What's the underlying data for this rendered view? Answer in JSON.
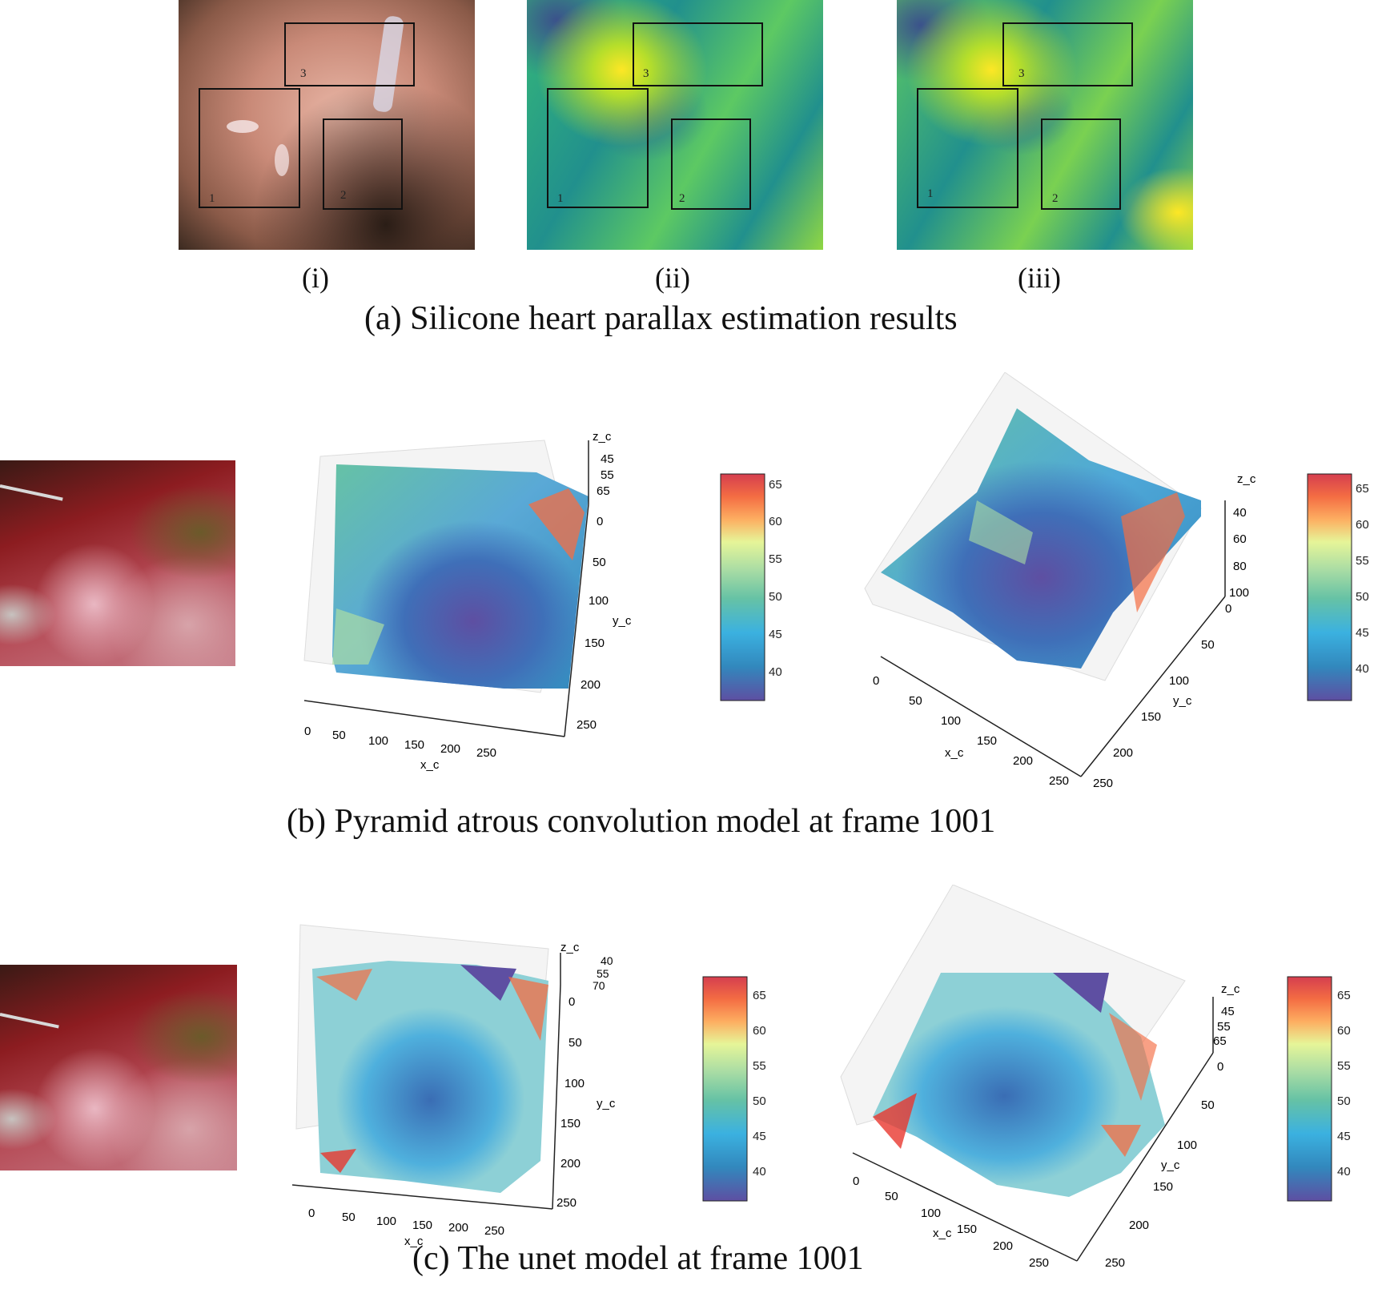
{
  "panel_a": {
    "subpanels": [
      {
        "label": "(i)",
        "box_labels": [
          "1",
          "2",
          "3"
        ]
      },
      {
        "label": "(ii)",
        "box_labels": [
          "1",
          "2",
          "3"
        ]
      },
      {
        "label": "(iii)",
        "box_labels": [
          "1",
          "2",
          "3"
        ]
      }
    ],
    "caption": "(a)  Silicone heart parallax estimation results"
  },
  "panel_b": {
    "caption": "(b) Pyramid atrous convolution model at frame 1001"
  },
  "panel_c": {
    "caption": "(c) The unet model at frame 1001"
  },
  "plots": {
    "b_left": {
      "x_label": "x_c",
      "y_label": "y_c",
      "z_label": "z_c",
      "x_ticks": [
        "0",
        "50",
        "100",
        "150",
        "200",
        "250"
      ],
      "y_ticks": [
        "0",
        "50",
        "100",
        "150",
        "200",
        "250"
      ],
      "z_ticks": [
        "45",
        "55",
        "65"
      ]
    },
    "b_right": {
      "x_label": "x_c",
      "y_label": "y_c",
      "z_label": "z_c",
      "x_ticks": [
        "0",
        "50",
        "100",
        "150",
        "200",
        "250"
      ],
      "y_ticks": [
        "0",
        "50",
        "100",
        "150",
        "200",
        "250"
      ],
      "z_ticks": [
        "40",
        "60",
        "80",
        "100"
      ]
    },
    "c_left": {
      "x_label": "x_c",
      "y_label": "y_c",
      "z_label": "z_c",
      "x_ticks": [
        "0",
        "50",
        "100",
        "150",
        "200",
        "250"
      ],
      "y_ticks": [
        "0",
        "50",
        "100",
        "150",
        "200",
        "250"
      ],
      "z_ticks": [
        "40",
        "55",
        "70"
      ]
    },
    "c_right": {
      "x_label": "x_c",
      "y_label": "y_c",
      "z_label": "z_c",
      "x_ticks": [
        "0",
        "50",
        "100",
        "150",
        "200",
        "250"
      ],
      "y_ticks": [
        "0",
        "50",
        "100",
        "150",
        "200",
        "250"
      ],
      "z_ticks": [
        "45",
        "55",
        "65"
      ]
    }
  },
  "colorbars": {
    "b_left": {
      "ticks": [
        "65",
        "60",
        "55",
        "50",
        "45",
        "40"
      ]
    },
    "b_right": {
      "ticks": [
        "65",
        "60",
        "55",
        "50",
        "45",
        "40"
      ]
    },
    "c_left": {
      "ticks": [
        "65",
        "60",
        "55",
        "50",
        "45",
        "40"
      ]
    },
    "c_right": {
      "ticks": [
        "65",
        "60",
        "55",
        "50",
        "45",
        "40"
      ]
    }
  },
  "colors": {
    "viridis": [
      "#440154",
      "#3b528b",
      "#21908d",
      "#5dc963",
      "#fde725"
    ],
    "spectral_r": [
      "#5e4fa2",
      "#3288bd",
      "#66c2a5",
      "#abdda4",
      "#e6f598",
      "#fee08b",
      "#fdae61",
      "#f46d43",
      "#d53e4f"
    ]
  }
}
